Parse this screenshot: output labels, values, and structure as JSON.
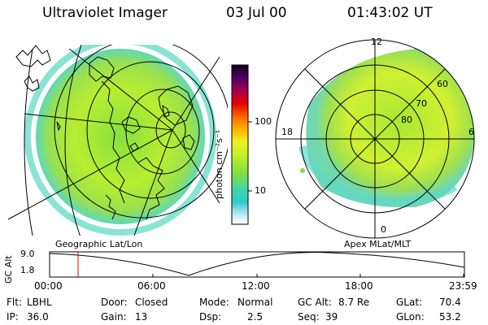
{
  "header": {
    "instrument": "Ultraviolet Imager",
    "date": "03 Jul 00",
    "time": "01:43:02 UT"
  },
  "colorbar": {
    "unit_label": "photon cm⁻²s⁻¹",
    "tick_100": "100",
    "tick_10": "10"
  },
  "left_panel": {
    "label": "Geographic Lat/Lon"
  },
  "right_panel": {
    "label": "Apex MLat/MLT",
    "mlt_labels": {
      "top": "12",
      "left": "18",
      "right": "6",
      "bottom": "0"
    },
    "lat_labels": [
      "60",
      "70",
      "80"
    ]
  },
  "altitude_plot": {
    "ylabel": "GC Alt",
    "ytick_top": "9.0",
    "ytick_bottom": "1.8",
    "xticks": [
      "00:00",
      "06:00",
      "12:00",
      "18:00",
      "23:59"
    ],
    "current_time_color": "#e00000"
  },
  "info": {
    "flt_label": "Flt:",
    "flt_value": "LBHL",
    "ip_label": "IP:",
    "ip_value": "36.0",
    "door_label": "Door:",
    "door_value": "Closed",
    "gain_label": "Gain:",
    "gain_value": "13",
    "mode_label": "Mode:",
    "mode_value": "Normal",
    "dsp_label": "Dsp:",
    "dsp_value": "2.5",
    "gcalt_label": "GC Alt:",
    "gcalt_value": "8.7 Re",
    "seq_label": "Seq:",
    "seq_value": "39",
    "glat_label": "GLat:",
    "glat_value": "70.4",
    "glon_label": "GLon:",
    "glon_value": "53.2"
  },
  "palette": {
    "scale": [
      "#f4f4f4",
      "#b0e8f0",
      "#28c8d0",
      "#48d8a0",
      "#80e840",
      "#c8f028",
      "#f0f020",
      "#ffb000",
      "#ff6000",
      "#e00000",
      "#a00060",
      "#500060",
      "#100020"
    ]
  }
}
